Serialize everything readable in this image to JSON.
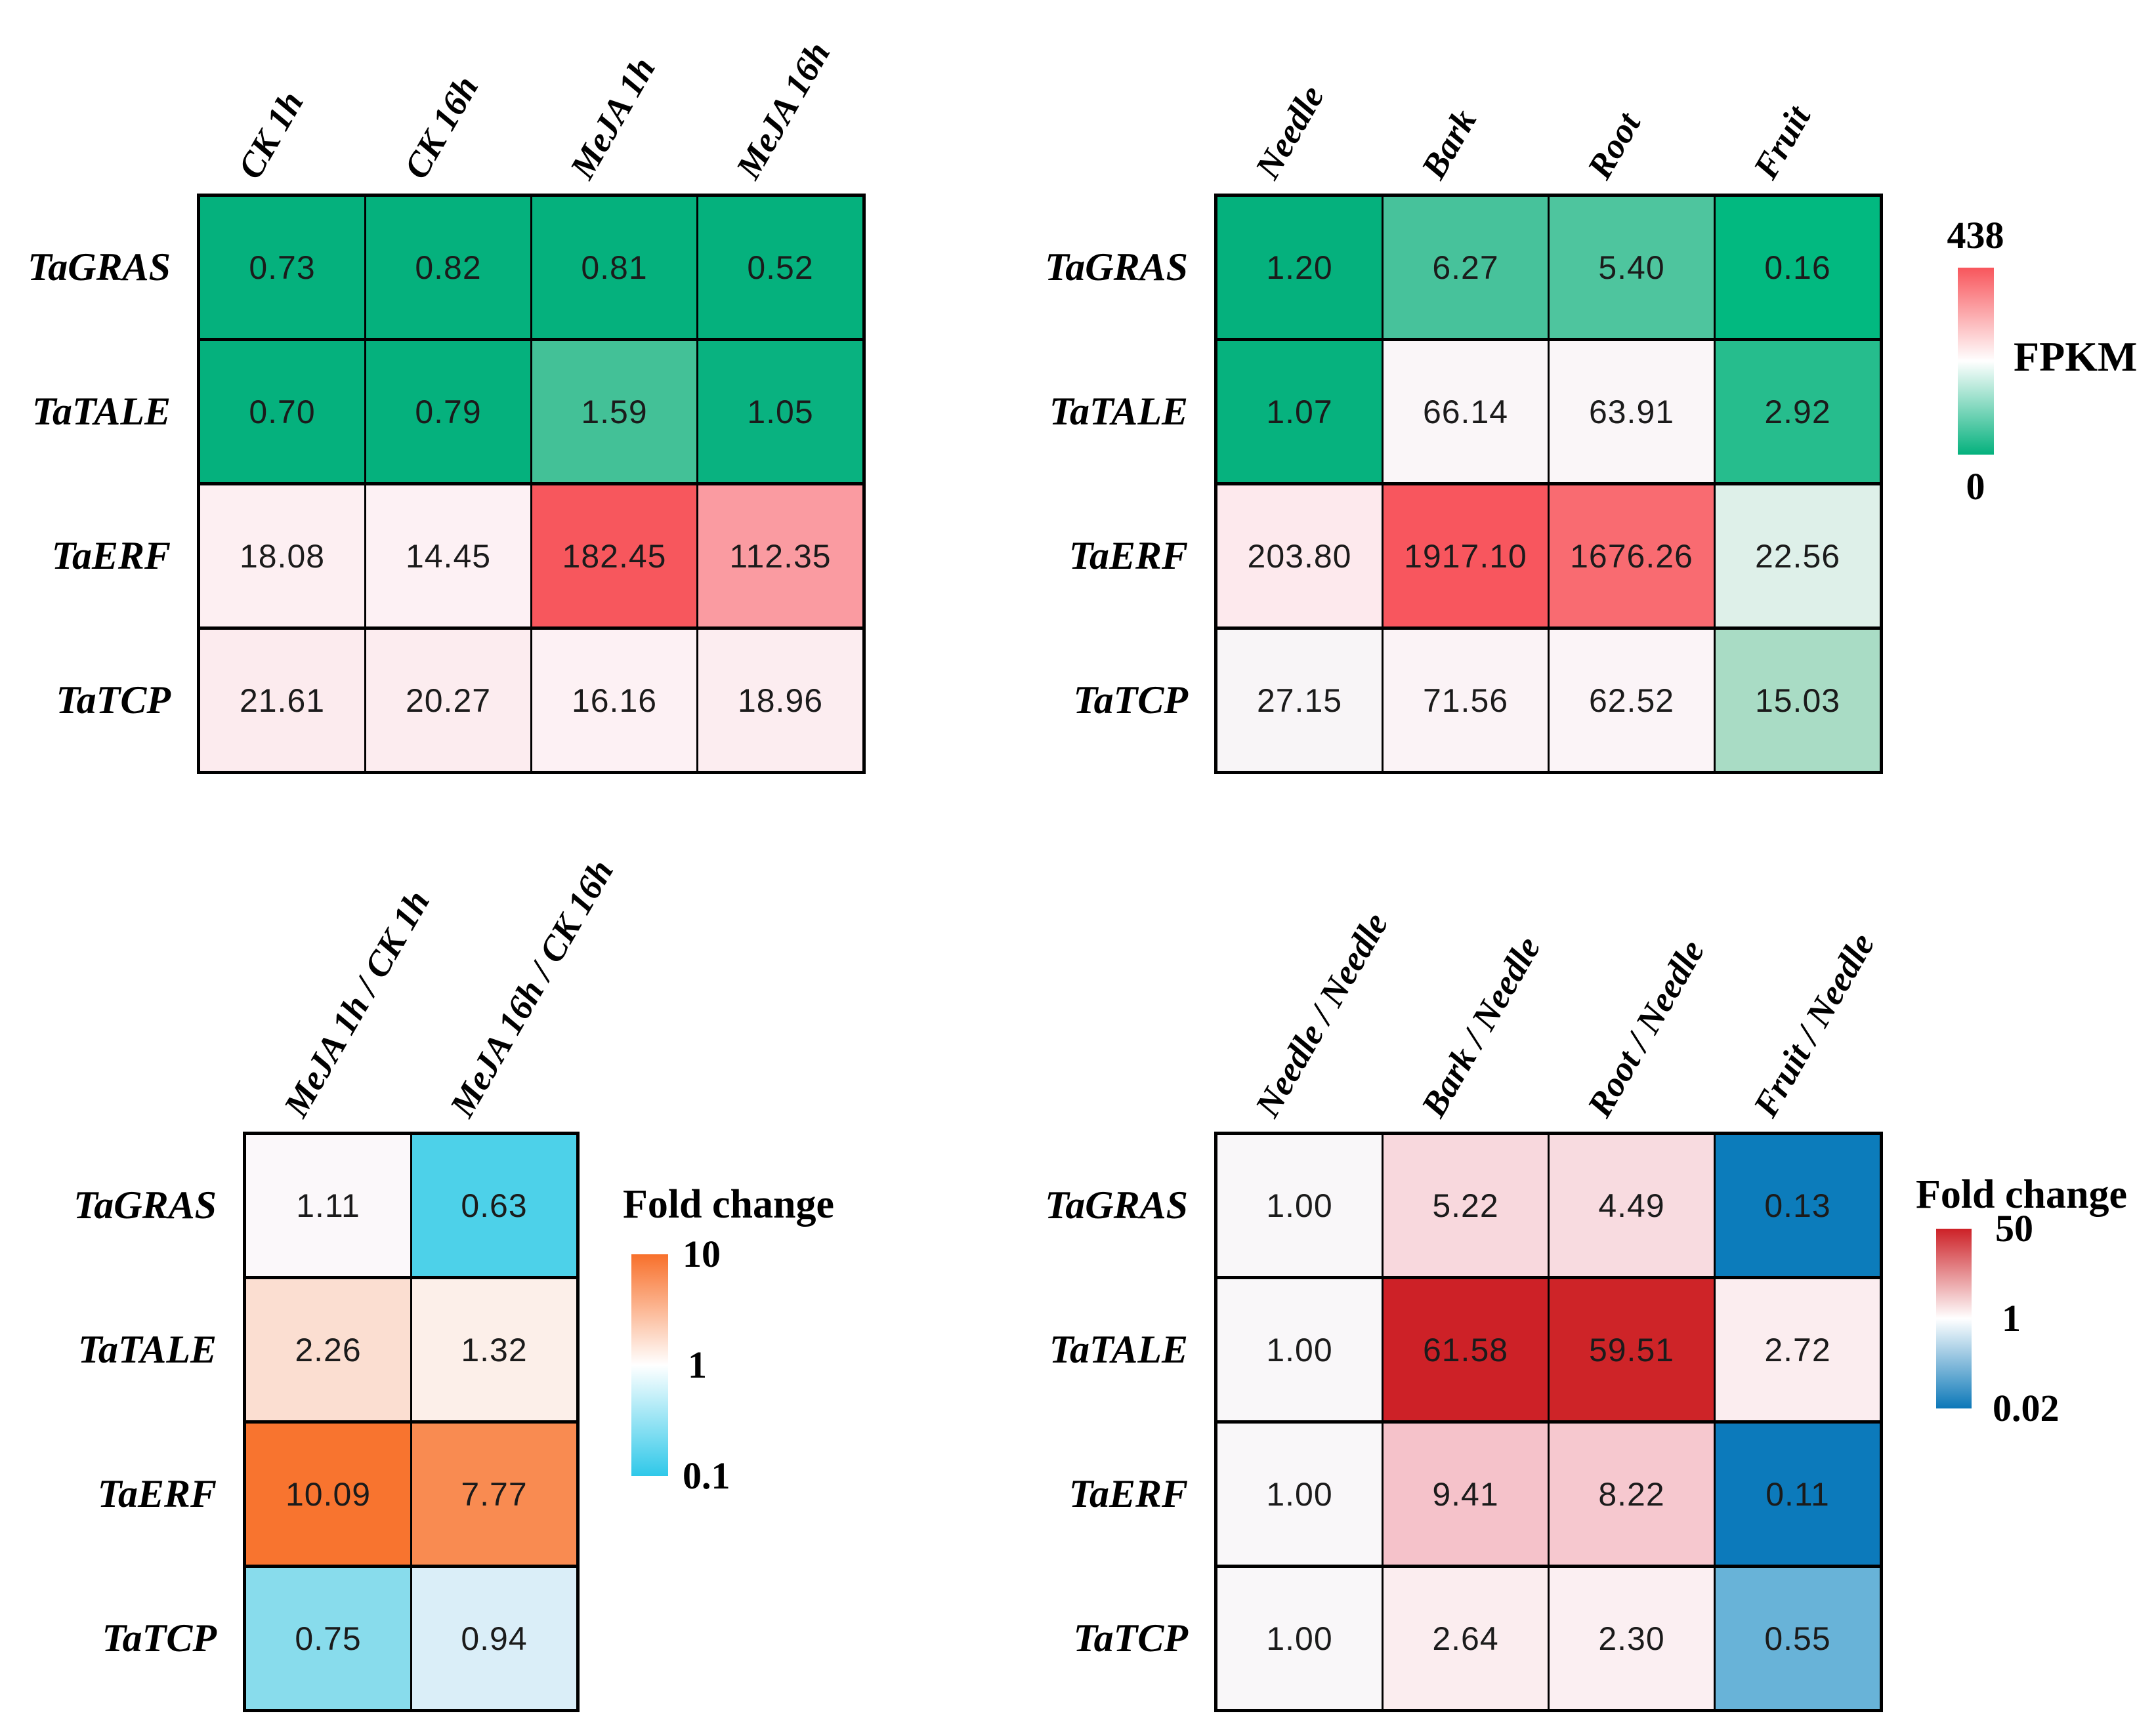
{
  "figure": {
    "background": "#ffffff",
    "description_genes": [
      "TaGRAS",
      "TaTALE",
      "TaERF",
      "TaTCP"
    ]
  },
  "chart_data": [
    {
      "id": "treatment_fpkm",
      "type": "heatmap",
      "title": "",
      "columns": [
        "CK 1h",
        "CK 16h",
        "MeJA 1h",
        "MeJA 16h"
      ],
      "rows": [
        "TaGRAS",
        "TaTALE",
        "TaERF",
        "TaTCP"
      ],
      "values": [
        [
          0.73,
          0.82,
          0.81,
          0.52
        ],
        [
          0.7,
          0.79,
          1.59,
          1.05
        ],
        [
          18.08,
          14.45,
          182.45,
          112.35
        ],
        [
          21.61,
          20.27,
          16.16,
          18.96
        ]
      ],
      "cell_colors": [
        [
          "#05b17d",
          "#05b17d",
          "#05b17d",
          "#05b17d"
        ],
        [
          "#05b17d",
          "#05b17d",
          "#43c197",
          "#09b280"
        ],
        [
          "#fdeff2",
          "#fdf1f4",
          "#f7575d",
          "#fa9ba1"
        ],
        [
          "#fcebee",
          "#fcecef",
          "#fdf1f4",
          "#fcedf0"
        ]
      ],
      "colorbar": "shares FPKM legend",
      "colorbar_range": [
        0,
        438
      ]
    },
    {
      "id": "tissue_fpkm",
      "type": "heatmap",
      "title": "",
      "columns": [
        "Needle",
        "Bark",
        "Root",
        "Fruit"
      ],
      "rows": [
        "TaGRAS",
        "TaTALE",
        "TaERF",
        "TaTCP"
      ],
      "values": [
        [
          1.2,
          6.27,
          5.4,
          0.16
        ],
        [
          1.07,
          66.14,
          63.91,
          2.92
        ],
        [
          203.8,
          1917.1,
          1676.26,
          22.56
        ],
        [
          27.15,
          71.56,
          62.52,
          15.03
        ]
      ],
      "cell_colors": [
        [
          "#05b17d",
          "#47c29b",
          "#4ec59e",
          "#02b980"
        ],
        [
          "#06b27e",
          "#faf6f8",
          "#faf6f8",
          "#26bd8d"
        ],
        [
          "#fde9ed",
          "#f8565e",
          "#f96b71",
          "#def0e9"
        ],
        [
          "#f8f5f7",
          "#fbf3f6",
          "#fbf4f7",
          "#a9dcc5"
        ]
      ],
      "colorbar_range": [
        0,
        438
      ],
      "legend": {
        "label": "FPKM",
        "max": "438",
        "min": "0",
        "position": "right",
        "gradient": [
          "#f8565c",
          "#ffffff",
          "#04b17d"
        ]
      }
    },
    {
      "id": "treatment_fold_change",
      "type": "heatmap",
      "title": "",
      "columns": [
        "MeJA 1h / CK 1h",
        "MeJA 16h / CK 16h"
      ],
      "rows": [
        "TaGRAS",
        "TaTALE",
        "TaERF",
        "TaTCP"
      ],
      "values": [
        [
          1.11,
          0.63
        ],
        [
          2.26,
          1.32
        ],
        [
          10.09,
          7.77
        ],
        [
          0.75,
          0.94
        ]
      ],
      "cell_colors": [
        [
          "#fbf8fa",
          "#4dd1e9"
        ],
        [
          "#fbded1",
          "#fcefe9"
        ],
        [
          "#f8742f",
          "#f98b51"
        ],
        [
          "#88dcec",
          "#daeef8"
        ]
      ],
      "colorbar_range": [
        0.1,
        10
      ],
      "legend": {
        "title": "Fold change",
        "max": "10",
        "mid": "1",
        "min": "0.1",
        "position": "right",
        "gradient": [
          "#f8702b",
          "#ffffff",
          "#2fc8e9"
        ]
      }
    },
    {
      "id": "tissue_fold_change",
      "type": "heatmap",
      "title": "",
      "columns": [
        "Needle / Needle",
        "Bark / Needle",
        "Root / Needle",
        "Fruit / Needle"
      ],
      "rows": [
        "TaGRAS",
        "TaTALE",
        "TaERF",
        "TaTCP"
      ],
      "values": [
        [
          1.0,
          5.22,
          4.49,
          0.13
        ],
        [
          1.0,
          61.58,
          59.51,
          2.72
        ],
        [
          1.0,
          9.41,
          8.22,
          0.11
        ],
        [
          1.0,
          2.64,
          2.3,
          0.55
        ]
      ],
      "cell_colors": [
        [
          "#f9f7f9",
          "#f8d8dd",
          "#f8dbe0",
          "#0c7cbb"
        ],
        [
          "#f9f7f9",
          "#cd2127",
          "#ce2428",
          "#fbedef"
        ],
        [
          "#f9f7f9",
          "#f5c2ca",
          "#f6c8cf",
          "#0c7abb"
        ],
        [
          "#f9f7f9",
          "#fbedef",
          "#fbeff2",
          "#68b3d8"
        ]
      ],
      "colorbar_range": [
        0.02,
        50
      ],
      "legend": {
        "title": "Fold change",
        "max": "50",
        "mid": "1",
        "min": "0.02",
        "position": "right",
        "gradient": [
          "#cd2127",
          "#ffffff",
          "#0c78b8"
        ]
      }
    }
  ]
}
